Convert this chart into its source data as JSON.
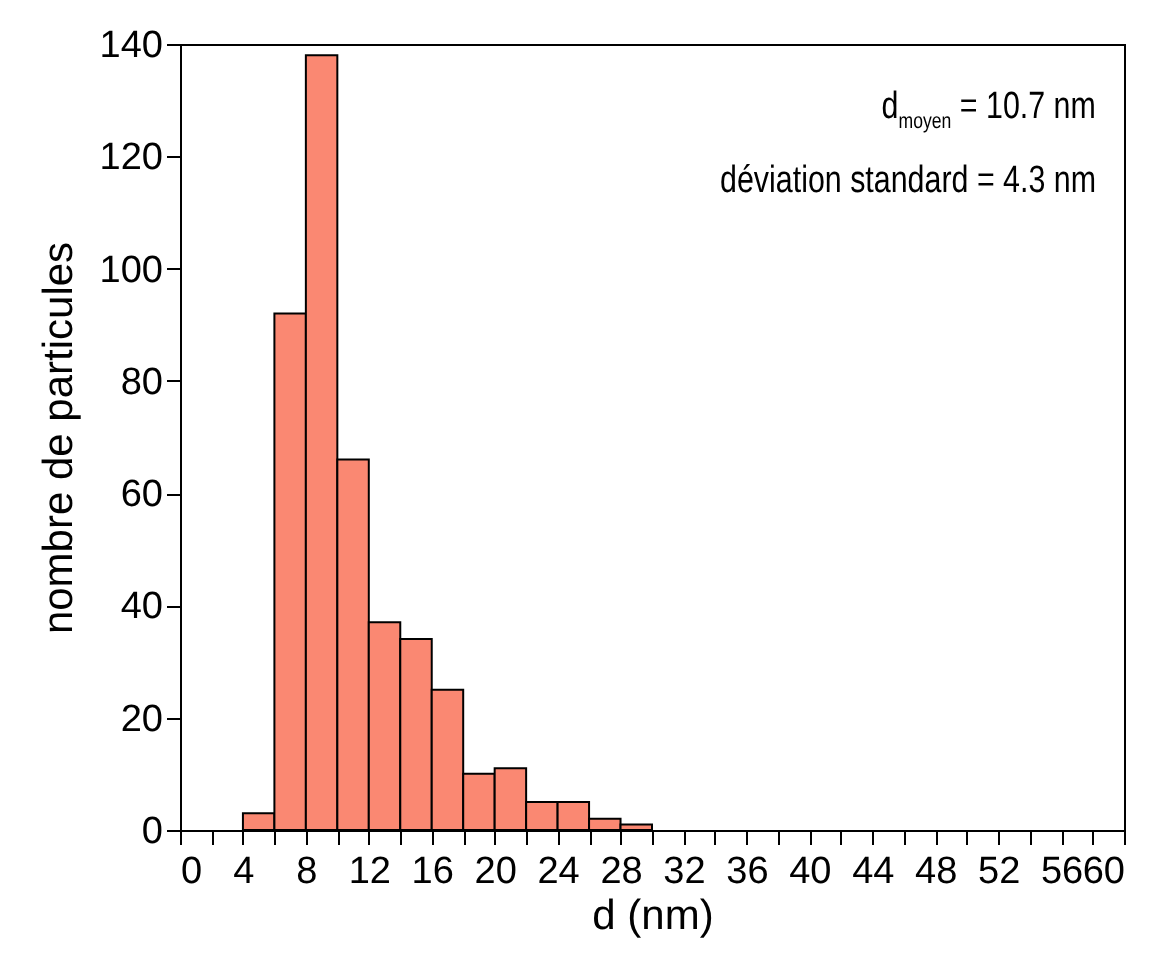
{
  "chart_data": {
    "type": "histogram",
    "xlabel": "d (nm)",
    "ylabel": "nombre de particules",
    "bins": [
      4,
      6,
      8,
      10,
      12,
      14,
      16,
      18,
      20,
      22,
      24,
      26,
      28,
      30
    ],
    "values": [
      3,
      92,
      138,
      66,
      37,
      34,
      25,
      10,
      11,
      5,
      5,
      2,
      1
    ],
    "color": "#fa8872",
    "xlim": [
      0,
      60
    ],
    "xticks": [
      0,
      {
        "value": 2,
        "label": null
      },
      4,
      {
        "value": 6,
        "label": null
      },
      8,
      {
        "value": 10,
        "label": null
      },
      12,
      {
        "value": 14,
        "label": null
      },
      16,
      {
        "value": 18,
        "label": null
      },
      20,
      {
        "value": 22,
        "label": null
      },
      24,
      {
        "value": 26,
        "label": null
      },
      28,
      {
        "value": 30,
        "label": null
      },
      32,
      {
        "value": 34,
        "label": null
      },
      36,
      {
        "value": 38,
        "label": null
      },
      40,
      {
        "value": 42,
        "label": null
      },
      44,
      {
        "value": 46,
        "label": null
      },
      48,
      {
        "value": 50,
        "label": null
      },
      52,
      {
        "value": 54,
        "label": null
      },
      56,
      {
        "value": 58,
        "label": null
      },
      60
    ],
    "ylim": [
      0,
      140
    ],
    "yticks": [
      0,
      20,
      40,
      60,
      80,
      100,
      120,
      140
    ],
    "grid": false,
    "annotations": [
      "d$_{moyen}$ = 10.7 nm",
      "déviation standard = 4.3 nm"
    ]
  }
}
